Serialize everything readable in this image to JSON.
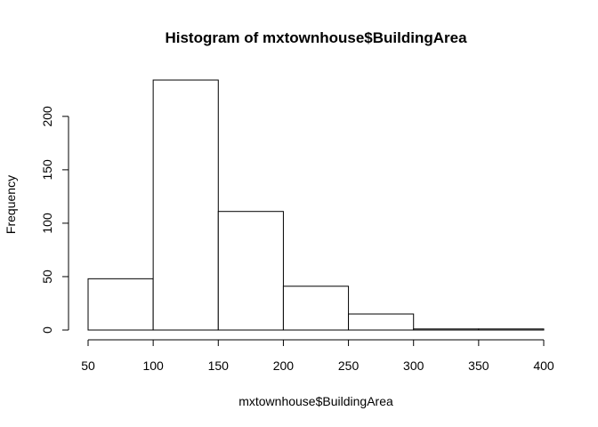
{
  "chart_data": {
    "type": "bar",
    "title": "Histogram of mxtownhouse$BuildingArea",
    "xlabel": "mxtownhouse$BuildingArea",
    "ylabel": "Frequency",
    "bins": [
      {
        "from": 50,
        "to": 100,
        "count": 48
      },
      {
        "from": 100,
        "to": 150,
        "count": 234
      },
      {
        "from": 150,
        "to": 200,
        "count": 111
      },
      {
        "from": 200,
        "to": 250,
        "count": 41
      },
      {
        "from": 250,
        "to": 300,
        "count": 15
      },
      {
        "from": 300,
        "to": 350,
        "count": 1
      },
      {
        "from": 350,
        "to": 400,
        "count": 1
      }
    ],
    "xlim": [
      50,
      400
    ],
    "ylim": [
      0,
      234
    ],
    "x_ticks": [
      "50",
      "100",
      "150",
      "200",
      "250",
      "300",
      "350",
      "400"
    ],
    "y_ticks": [
      "0",
      "50",
      "100",
      "150",
      "200"
    ],
    "grid": false,
    "bar_fill": "#ffffff",
    "bar_stroke": "#000000"
  }
}
